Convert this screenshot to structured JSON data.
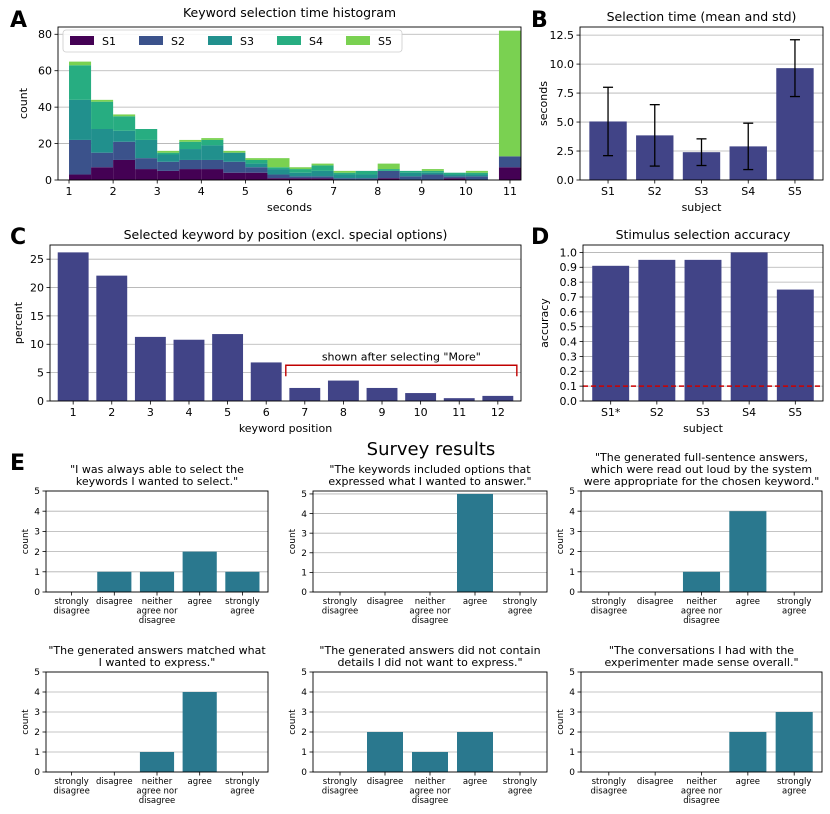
{
  "panel_letters": {
    "A": "A",
    "B": "B",
    "C": "C",
    "D": "D",
    "E": "E"
  },
  "survey_title": "Survey results",
  "colors": {
    "S1": "#440154",
    "S2": "#3b528b",
    "S3": "#21908d",
    "S4": "#27ad81",
    "S5": "#7ad151",
    "bar": "#414487",
    "survey_bar": "#2a788e",
    "threshold": "#cc0000",
    "annotation": "#c00000",
    "grid": "#b0b0b0"
  },
  "chart_data": [
    {
      "id": "A",
      "type": "bar",
      "stacked": true,
      "title": "Keyword selection time histogram",
      "xlabel": "seconds",
      "ylabel": "count",
      "xlim": [
        0.75,
        11.25
      ],
      "ylim": [
        0,
        84
      ],
      "xticks": [
        1,
        2,
        3,
        4,
        5,
        6,
        7,
        8,
        9,
        10,
        11
      ],
      "yticks": [
        0,
        20,
        40,
        60,
        80
      ],
      "grid": "y",
      "legend": "top, inside, horizontal",
      "bin_starts": [
        1.0,
        1.5,
        2.0,
        2.5,
        3.0,
        3.5,
        4.0,
        4.5,
        5.0,
        5.5,
        6.0,
        6.5,
        7.0,
        7.5,
        8.0,
        8.5,
        9.0,
        9.5,
        10.0,
        10.5
      ],
      "bin_width": 0.5,
      "overflow_bin": {
        "start": 10.75,
        "width": 0.5
      },
      "series": [
        {
          "name": "S1",
          "values": [
            3,
            7,
            11,
            6,
            5,
            6,
            6,
            4,
            4,
            1,
            1,
            1,
            0,
            0,
            1,
            0,
            0,
            1,
            0,
            0
          ],
          "overflow": 7
        },
        {
          "name": "S2",
          "values": [
            19,
            8,
            10,
            6,
            5,
            5,
            5,
            6,
            3,
            2,
            1,
            1,
            1,
            1,
            4,
            2,
            3,
            1,
            2,
            0
          ],
          "overflow": 6
        },
        {
          "name": "S3",
          "values": [
            22,
            13,
            6,
            10,
            4,
            6,
            8,
            5,
            2,
            3,
            2,
            3,
            2,
            2,
            0,
            2,
            1,
            1,
            1,
            0
          ],
          "overflow": 0
        },
        {
          "name": "S4",
          "values": [
            19,
            15,
            8,
            6,
            1,
            4,
            3,
            0,
            2,
            1,
            2,
            3,
            1,
            2,
            1,
            1,
            1,
            1,
            1,
            0
          ],
          "overflow": 0
        },
        {
          "name": "S5",
          "values": [
            2,
            1,
            1,
            0,
            1,
            1,
            1,
            1,
            1,
            5,
            1,
            1,
            1,
            0,
            3,
            0,
            1,
            0,
            1,
            0
          ],
          "overflow": 69
        }
      ]
    },
    {
      "id": "B",
      "type": "bar",
      "title": "Selection time (mean and std)",
      "xlabel": "subject",
      "ylabel": "seconds",
      "categories": [
        "S1",
        "S2",
        "S3",
        "S4",
        "S5"
      ],
      "values": [
        5.05,
        3.85,
        2.4,
        2.9,
        9.65
      ],
      "error": [
        2.95,
        2.65,
        1.15,
        2.0,
        2.45
      ],
      "ylim": [
        0,
        13.2
      ],
      "yticks": [
        0.0,
        2.5,
        5.0,
        7.5,
        10.0,
        12.5
      ],
      "ytick_labels": [
        "0.0",
        "2.5",
        "5.0",
        "7.5",
        "10.0",
        "12.5"
      ],
      "grid": "y"
    },
    {
      "id": "C",
      "type": "bar",
      "title": "Selected keyword by position (excl. special options)",
      "xlabel": "keyword position",
      "ylabel": "percent",
      "categories": [
        "1",
        "2",
        "3",
        "4",
        "5",
        "6",
        "7",
        "8",
        "9",
        "10",
        "11",
        "12"
      ],
      "values": [
        26.2,
        22.1,
        11.3,
        10.8,
        11.8,
        6.8,
        2.3,
        3.6,
        2.3,
        1.4,
        0.5,
        0.9
      ],
      "ylim": [
        0,
        27.5
      ],
      "yticks": [
        0,
        5,
        10,
        15,
        20,
        25
      ],
      "grid": "y",
      "annotation": {
        "text": "shown after selecting \"More\"",
        "from": "7",
        "to": "12",
        "y": 6.3
      }
    },
    {
      "id": "D",
      "type": "bar",
      "title": "Stimulus selection accuracy",
      "xlabel": "subject",
      "ylabel": "accuracy",
      "categories": [
        "S1*",
        "S2",
        "S3",
        "S4",
        "S5"
      ],
      "values": [
        0.91,
        0.95,
        0.95,
        1.0,
        0.75
      ],
      "ylim": [
        0,
        1.05
      ],
      "yticks": [
        0.0,
        0.1,
        0.2,
        0.3,
        0.4,
        0.5,
        0.6,
        0.7,
        0.8,
        0.9,
        1.0
      ],
      "ytick_labels": [
        "0.0",
        "0.1",
        "0.2",
        "0.3",
        "0.4",
        "0.5",
        "0.6",
        "0.7",
        "0.8",
        "0.9",
        "1.0"
      ],
      "chance_level": 0.1,
      "grid": "y"
    },
    {
      "id": "E1",
      "type": "bar",
      "title_lines": [
        "\"I was always able to select the",
        "keywords I wanted to select.\""
      ],
      "ylabel": "count",
      "categories": [
        [
          "strongly",
          "disagree"
        ],
        [
          "disagree"
        ],
        [
          "neither",
          "agree nor",
          "disagree"
        ],
        [
          "agree"
        ],
        [
          "strongly",
          "agree"
        ]
      ],
      "values": [
        0,
        1,
        1,
        2,
        1
      ],
      "ylim": [
        0,
        5
      ],
      "yticks": [
        0,
        1,
        2,
        3,
        4,
        5
      ],
      "grid": "y"
    },
    {
      "id": "E2",
      "type": "bar",
      "title_lines": [
        "\"The keywords included options that",
        "expressed what I wanted to answer.\""
      ],
      "ylabel": "count",
      "categories": [
        [
          "strongly",
          "disagree"
        ],
        [
          "disagree"
        ],
        [
          "neither",
          "agree nor",
          "disagree"
        ],
        [
          "agree"
        ],
        [
          "strongly",
          "agree"
        ]
      ],
      "values": [
        0,
        0,
        0,
        5,
        0
      ],
      "ylim": [
        0,
        5.15
      ],
      "yticks": [
        0,
        1,
        2,
        3,
        4,
        5
      ],
      "grid": "y"
    },
    {
      "id": "E3",
      "type": "bar",
      "title_lines": [
        "\"The generated full-sentence answers,",
        "which were read out loud by the system",
        "were appropriate for the chosen keyword.\""
      ],
      "ylabel": "count",
      "categories": [
        [
          "strongly",
          "disagree"
        ],
        [
          "disagree"
        ],
        [
          "neither",
          "agree nor",
          "disagree"
        ],
        [
          "agree"
        ],
        [
          "strongly",
          "agree"
        ]
      ],
      "values": [
        0,
        0,
        1,
        4,
        0
      ],
      "ylim": [
        0,
        5
      ],
      "yticks": [
        0,
        1,
        2,
        3,
        4,
        5
      ],
      "grid": "y"
    },
    {
      "id": "E4",
      "type": "bar",
      "title_lines": [
        "\"The generated answers matched what",
        "I wanted to express.\""
      ],
      "ylabel": "count",
      "categories": [
        [
          "strongly",
          "disagree"
        ],
        [
          "disagree"
        ],
        [
          "neither",
          "agree nor",
          "disagree"
        ],
        [
          "agree"
        ],
        [
          "strongly",
          "agree"
        ]
      ],
      "values": [
        0,
        0,
        1,
        4,
        0
      ],
      "ylim": [
        0,
        5
      ],
      "yticks": [
        0,
        1,
        2,
        3,
        4,
        5
      ],
      "grid": "y"
    },
    {
      "id": "E5",
      "type": "bar",
      "title_lines": [
        "\"The generated answers did not contain",
        "details I did not want to express.\""
      ],
      "ylabel": "count",
      "categories": [
        [
          "strongly",
          "disagree"
        ],
        [
          "disagree"
        ],
        [
          "neither",
          "agree nor",
          "disagree"
        ],
        [
          "agree"
        ],
        [
          "strongly",
          "agree"
        ]
      ],
      "values": [
        0,
        2,
        1,
        2,
        0
      ],
      "ylim": [
        0,
        5
      ],
      "yticks": [
        0,
        1,
        2,
        3,
        4,
        5
      ],
      "grid": "y"
    },
    {
      "id": "E6",
      "type": "bar",
      "title_lines": [
        "\"The conversations I had with the",
        "experimenter made sense overall.\""
      ],
      "ylabel": "count",
      "categories": [
        [
          "strongly",
          "disagree"
        ],
        [
          "disagree"
        ],
        [
          "neither",
          "agree nor",
          "disagree"
        ],
        [
          "agree"
        ],
        [
          "strongly",
          "agree"
        ]
      ],
      "values": [
        0,
        0,
        0,
        2,
        3
      ],
      "ylim": [
        0,
        5
      ],
      "yticks": [
        0,
        1,
        2,
        3,
        4,
        5
      ],
      "grid": "y"
    }
  ]
}
